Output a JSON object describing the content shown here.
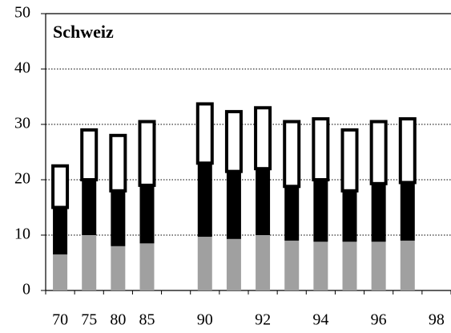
{
  "chart_data": {
    "type": "stacked-bar",
    "title": "Schweiz",
    "categories": [
      "70",
      "75",
      "80",
      "85",
      null,
      "90",
      null,
      "92",
      null,
      "94",
      null,
      "96",
      null,
      "98"
    ],
    "series": [
      {
        "color": "#a0a0a0",
        "values": [
          6.5,
          10,
          8,
          8.5,
          null,
          9.7,
          9.3,
          10,
          9,
          8.8,
          8.8,
          8.8,
          9,
          null
        ]
      },
      {
        "color": "#000000",
        "values": [
          8.5,
          10,
          10,
          10.5,
          null,
          13.3,
          12.2,
          12,
          9.8,
          11.2,
          9.2,
          10.5,
          10.5,
          null
        ]
      },
      {
        "color": "#ffffff",
        "values": [
          7.5,
          9,
          10,
          11.5,
          null,
          10.7,
          10.8,
          11,
          11.7,
          11,
          11,
          11.2,
          11.5,
          null
        ]
      }
    ],
    "ylim": [
      0,
      50
    ],
    "yticks": [
      0,
      10,
      20,
      30,
      40,
      50
    ],
    "grid": true
  }
}
